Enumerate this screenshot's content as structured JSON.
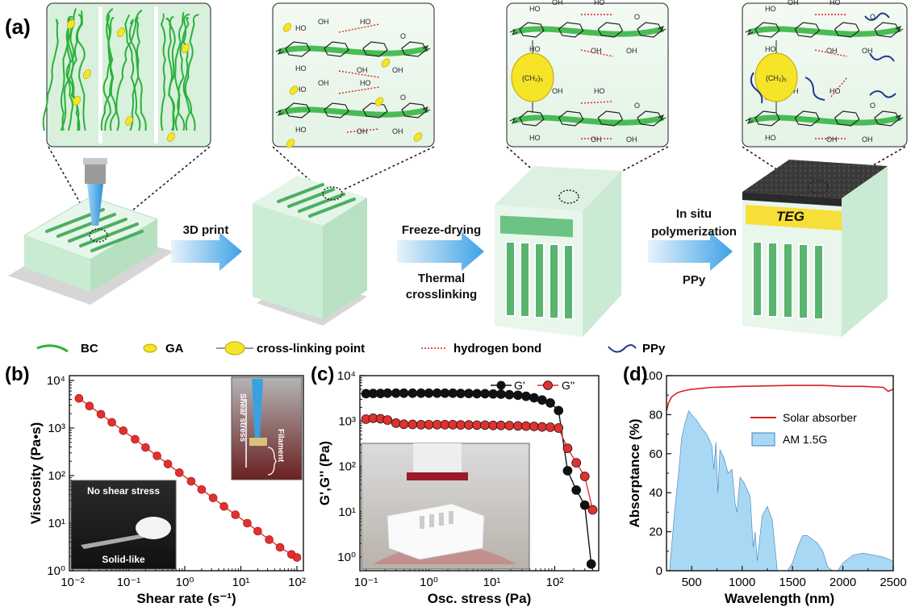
{
  "panel_a": {
    "label": "(a)",
    "steps": [
      {
        "line1": "3D print",
        "line2": "",
        "line3": ""
      },
      {
        "line1": "Freeze-drying",
        "line2": "Thermal",
        "line3": "crosslinking"
      },
      {
        "line1": "In situ",
        "line2": "polymerization",
        "line3": "PPy"
      }
    ],
    "teg_label": "TEG",
    "chem": {
      "ho": "HO",
      "oh": "OH",
      "o": "O",
      "ch2": "(CH₂)₅"
    },
    "legend": [
      {
        "symbol": "bc",
        "label": "BC"
      },
      {
        "symbol": "ga",
        "label": "GA"
      },
      {
        "symbol": "crosslink",
        "label": "cross-linking point"
      },
      {
        "symbol": "hbond",
        "label": "hydrogen bond"
      },
      {
        "symbol": "ppy",
        "label": "PPy"
      }
    ],
    "colors": {
      "block": "#d4efdb",
      "block_side": "#b8e0c2",
      "fiber": "#2bb13a",
      "ga": "#f5e427",
      "hbond": "#e02020",
      "ppy": "#1f3a8a",
      "arrow": "#4aa8e8",
      "teg": "#f7df3a",
      "top_black": "#3a3a3a"
    }
  },
  "chart_data": [
    {
      "panel": "(b)",
      "type": "scatter",
      "xlabel": "Shear rate (s⁻¹)",
      "ylabel": "Viscosity (Pa•s)",
      "xscale": "log",
      "yscale": "log",
      "xlim": [
        0.01,
        100
      ],
      "ylim": [
        1,
        10000
      ],
      "xticks": [
        "10⁻²",
        "10⁻¹",
        "10⁰",
        "10¹",
        "10²"
      ],
      "yticks": [
        "10⁰",
        "10¹",
        "10²",
        "10³",
        "10⁴"
      ],
      "series": [
        {
          "color": "#e03030",
          "x": [
            0.013,
            0.02,
            0.032,
            0.05,
            0.08,
            0.13,
            0.2,
            0.32,
            0.5,
            0.8,
            1.3,
            2,
            3.2,
            5,
            8,
            13,
            20,
            32,
            50,
            80,
            100
          ],
          "y": [
            4200,
            2900,
            1950,
            1320,
            880,
            580,
            390,
            260,
            175,
            115,
            76,
            51,
            34,
            22.5,
            15,
            10,
            6.8,
            4.5,
            3.1,
            2.2,
            1.9
          ]
        }
      ],
      "insets": [
        {
          "type": "photo",
          "top_text": "No shear stress",
          "bottom_text": "Solid-like"
        },
        {
          "type": "photo",
          "side_text": "Shear stress",
          "right_text": "Filament"
        }
      ]
    },
    {
      "panel": "(c)",
      "type": "scatter",
      "xlabel": "Osc. stress (Pa)",
      "ylabel": "G',G'' (Pa)",
      "xscale": "log",
      "yscale": "log",
      "xlim": [
        0.08,
        500
      ],
      "ylim": [
        0.5,
        10000
      ],
      "xticks": [
        "10⁻¹",
        "10⁰",
        "10¹",
        "10²"
      ],
      "yticks": [
        "10⁰",
        "10¹",
        "10²",
        "10³",
        "10⁴"
      ],
      "legend_position": "top-right",
      "series": [
        {
          "name": "G'",
          "color": "#111111",
          "x": [
            0.1,
            0.13,
            0.17,
            0.22,
            0.3,
            0.4,
            0.55,
            0.75,
            1,
            1.35,
            1.8,
            2.4,
            3.2,
            4.3,
            5.8,
            7.8,
            10.5,
            14,
            19,
            26,
            35,
            47,
            63,
            85,
            115,
            160,
            220,
            300,
            380
          ],
          "y": [
            4000,
            4050,
            4050,
            4100,
            4100,
            4100,
            4100,
            4100,
            4100,
            4100,
            4100,
            4100,
            4050,
            4050,
            4000,
            4000,
            3950,
            3900,
            3800,
            3700,
            3500,
            3250,
            2900,
            2500,
            1700,
            80,
            30,
            14,
            0.7
          ]
        },
        {
          "name": "G''",
          "color": "#e03030",
          "x": [
            0.1,
            0.13,
            0.17,
            0.22,
            0.3,
            0.4,
            0.55,
            0.75,
            1,
            1.35,
            1.8,
            2.4,
            3.2,
            4.3,
            5.8,
            7.8,
            10.5,
            14,
            19,
            26,
            35,
            47,
            63,
            85,
            115,
            160,
            220,
            300,
            400
          ],
          "y": [
            1100,
            1150,
            1120,
            1050,
            900,
            850,
            840,
            830,
            830,
            830,
            830,
            830,
            820,
            820,
            810,
            810,
            800,
            800,
            790,
            780,
            770,
            760,
            740,
            730,
            700,
            250,
            120,
            60,
            11
          ]
        }
      ],
      "insets": [
        {
          "type": "photo"
        }
      ]
    },
    {
      "panel": "(d)",
      "type": "area",
      "xlabel": "Wavelength (nm)",
      "ylabel": "Absorptance (%)",
      "xlim": [
        250,
        2500
      ],
      "ylim": [
        0,
        100
      ],
      "xticks": [
        "500",
        "1000",
        "1500",
        "2000",
        "2500"
      ],
      "yticks": [
        "0",
        "20",
        "40",
        "60",
        "80",
        "100"
      ],
      "legend_position": "top-right",
      "series": [
        {
          "name": "Solar absorber",
          "color": "#d62020",
          "x": [
            250,
            270,
            300,
            350,
            400,
            500,
            700,
            1000,
            1500,
            1800,
            2000,
            2200,
            2400,
            2450,
            2500
          ],
          "y": [
            82,
            86,
            89,
            91,
            92,
            93,
            94,
            94.5,
            95,
            95,
            94.5,
            94.5,
            94,
            92,
            93
          ]
        },
        {
          "name": "AM 1.5G",
          "color": "#a9d8f5",
          "x": [
            280,
            330,
            370,
            400,
            430,
            470,
            500,
            550,
            600,
            650,
            700,
            720,
            740,
            760,
            780,
            820,
            860,
            900,
            930,
            950,
            980,
            1020,
            1080,
            1110,
            1130,
            1150,
            1200,
            1250,
            1300,
            1330,
            1350,
            1400,
            1450,
            1500,
            1550,
            1600,
            1650,
            1700,
            1750,
            1800,
            1850,
            1900,
            1950,
            2000,
            2100,
            2200,
            2300,
            2400,
            2500
          ],
          "y": [
            0,
            30,
            50,
            68,
            75,
            82,
            80,
            77,
            73,
            70,
            64,
            52,
            66,
            40,
            62,
            58,
            50,
            52,
            35,
            30,
            48,
            45,
            38,
            12,
            20,
            5,
            28,
            33,
            26,
            10,
            0,
            0,
            0,
            4,
            12,
            18,
            18,
            16,
            14,
            10,
            2,
            0,
            0,
            4,
            8,
            9,
            8,
            7,
            5
          ]
        }
      ]
    }
  ]
}
